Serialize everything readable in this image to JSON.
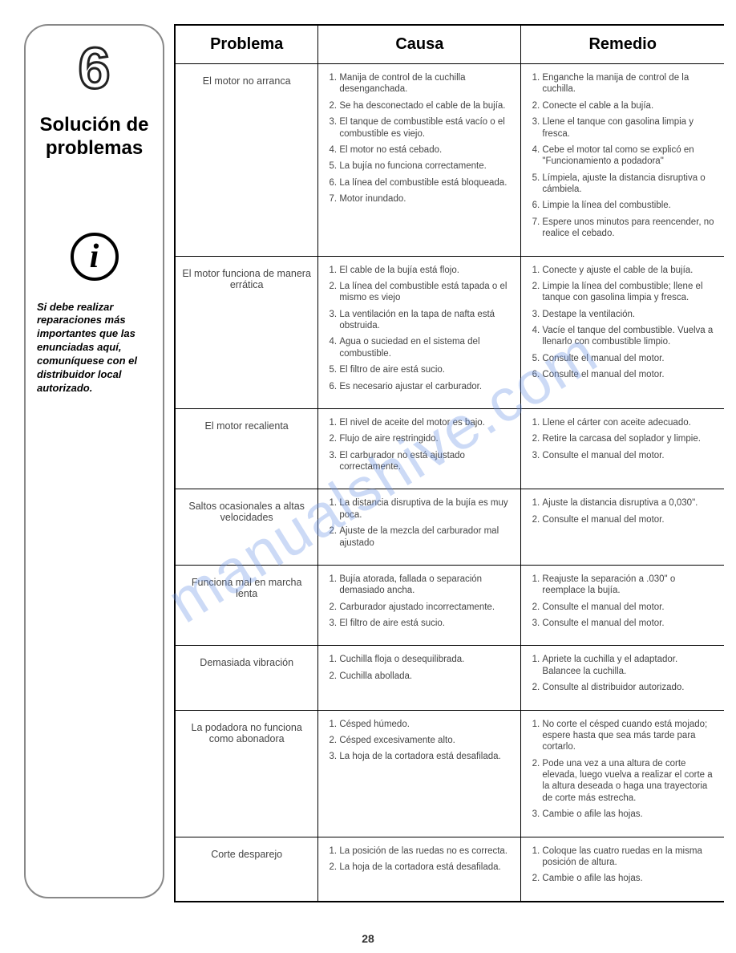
{
  "sidebar": {
    "section_number": "6",
    "section_title": "Solución de problemas",
    "info_glyph": "i",
    "note": "Si debe realizar reparaciones más importantes que las enunciadas aquí, comuníquese con el distribuidor local autorizado."
  },
  "table": {
    "headers": [
      "Problema",
      "Causa",
      "Remedio"
    ],
    "rows": [
      {
        "problem": "El motor no arranca",
        "causes": [
          "Manija de control de la cuchilla desenganchada.",
          "Se ha desconectado el cable de la bujía.",
          "El tanque de combustible está vacío o el combustible es viejo.",
          "El motor no está cebado.",
          "La bujía no funciona correctamente.",
          "La línea del combustible está bloqueada.",
          "Motor inundado."
        ],
        "remedies": [
          "Enganche la manija de control de la cuchilla.",
          "Conecte el cable a la bujía.",
          "Llene el tanque con gasolina limpia y fresca.",
          "Cebe el motor tal como se explicó en \"Funcionamiento a podadora\"",
          "Límpiela, ajuste la distancia disruptiva o cámbiela.",
          "Limpie la línea del combustible.",
          "Espere unos minutos para reencender, no realice el cebado."
        ]
      },
      {
        "problem": "El motor funciona de manera errática",
        "causes": [
          "El cable de la bujía está flojo.",
          "La línea del combustible está tapada o el mismo es viejo",
          "La ventilación en la tapa de nafta está obstruida.",
          "Agua o suciedad en el sistema del combustible.",
          "El filtro de aire está sucio.",
          "Es necesario ajustar el carburador."
        ],
        "remedies": [
          "Conecte y ajuste el cable de la bujía.",
          "Limpie la línea del combustible; llene el tanque con gasolina limpia y fresca.",
          "Destape la ventilación.",
          "Vacíe el tanque del combustible. Vuelva a llenarlo con combustible limpio.",
          "Consulte el manual del motor.",
          "Consulte el manual del motor."
        ]
      },
      {
        "problem": "El motor recalienta",
        "causes": [
          "El nivel de aceite del motor es bajo.",
          "Flujo de aire restringido.",
          "El carburador no está ajustado correctamente."
        ],
        "remedies": [
          "Llene el cárter con aceite adecuado.",
          "Retire la carcasa del soplador y limpie.",
          "Consulte el manual del motor."
        ]
      },
      {
        "problem": "Saltos ocasionales a altas velocidades",
        "causes": [
          "La distancia disruptiva de la bujía es muy poca.",
          "Ajuste de la mezcla del carburador mal ajustado"
        ],
        "remedies": [
          "Ajuste la distancia disruptiva a 0,030\".",
          "Consulte el manual del motor."
        ]
      },
      {
        "problem": "Funciona mal en marcha lenta",
        "causes": [
          "Bujía atorada, fallada o separación demasiado ancha.",
          "Carburador ajustado incorrectamente.",
          "El filtro de aire está sucio."
        ],
        "remedies": [
          "Reajuste la separación a .030\" o reemplace la bujía.",
          "Consulte el manual del motor.",
          "Consulte el manual del motor."
        ]
      },
      {
        "problem": "Demasiada vibración",
        "causes": [
          "Cuchilla floja o desequilibrada.",
          "Cuchilla abollada."
        ],
        "remedies": [
          "Apriete la cuchilla y el adaptador. Balancee la cuchilla.",
          "Consulte al distribuidor autorizado."
        ]
      },
      {
        "problem": "La podadora no funciona como abonadora",
        "causes": [
          "Césped húmedo.",
          "Césped excesivamente alto.",
          "La hoja de la cortadora está desafilada."
        ],
        "remedies": [
          "No corte el césped cuando está mojado; espere hasta que sea más tarde para cortarlo.",
          "Pode una vez a una altura de corte elevada, luego vuelva a realizar el corte a la altura deseada o haga una trayectoria de corte más estrecha.",
          "Cambie o afile las hojas."
        ]
      },
      {
        "problem": "Corte desparejo",
        "causes": [
          "La posición de las ruedas no es correcta.",
          "La hoja de la cortadora está desafilada."
        ],
        "remedies": [
          "Coloque las cuatro ruedas en la misma posición de altura.",
          "Cambie o afile las hojas."
        ]
      }
    ]
  },
  "watermark": "manualshive.com",
  "page_number": "28"
}
